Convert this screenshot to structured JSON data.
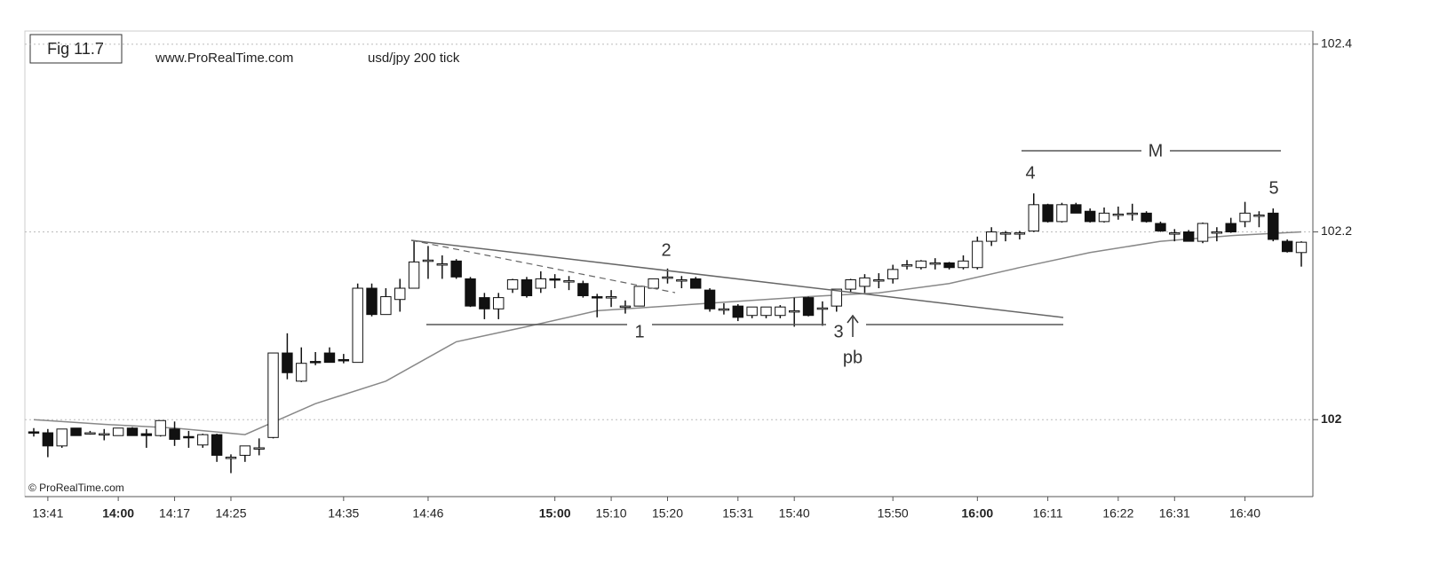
{
  "chart_data": {
    "type": "candlestick",
    "title": "Fig 11.7",
    "subtitle": "www.ProRealTime.com",
    "instrument": "usd/jpy  200 tick",
    "credit": "© ProRealTime.com",
    "annotations": [
      "1",
      "2",
      "3",
      "4",
      "5",
      "M",
      "pb"
    ],
    "x": [
      null,
      "13:41",
      null,
      null,
      null,
      null,
      "14:00",
      null,
      null,
      null,
      "14:17",
      null,
      null,
      null,
      "14:25",
      null,
      null,
      null,
      null,
      null,
      null,
      null,
      "14:35",
      null,
      null,
      null,
      null,
      null,
      "14:46",
      null,
      null,
      null,
      null,
      null,
      null,
      null,
      null,
      "15:00",
      null,
      null,
      null,
      "15:10",
      null,
      null,
      null,
      "15:20",
      null,
      null,
      null,
      null,
      "15:31",
      null,
      null,
      null,
      "15:40",
      null,
      null,
      null,
      null,
      null,
      null,
      "15:50",
      null,
      null,
      null,
      null,
      null,
      "16:00",
      null,
      null,
      null,
      null,
      "16:11",
      null,
      null,
      null,
      null,
      "16:22",
      null,
      null,
      null,
      "16:31",
      null,
      null,
      null,
      null,
      "16:40",
      null,
      null,
      null,
      null
    ],
    "open": [
      101.987,
      101.986,
      101.972,
      101.991,
      101.986,
      101.985,
      101.983,
      101.991,
      101.985,
      101.983,
      101.99,
      101.982,
      101.973,
      101.984,
      101.96,
      101.962,
      101.97,
      101.981,
      102.071,
      102.041,
      102.062,
      102.071,
      102.064,
      102.061,
      102.14,
      102.112,
      102.128,
      102.14,
      102.17,
      102.166,
      102.169,
      102.15,
      102.13,
      102.118,
      102.139,
      102.149,
      102.14,
      102.15,
      102.148,
      102.145,
      102.131,
      102.131,
      102.121,
      102.121,
      102.14,
      102.152,
      102.149,
      102.15,
      102.138,
      102.118,
      102.121,
      102.111,
      102.111,
      102.111,
      102.116,
      102.13,
      102.119,
      102.121,
      102.139,
      102.142,
      102.149,
      102.15,
      102.165,
      102.162,
      102.167,
      102.167,
      102.162,
      102.162,
      102.19,
      102.199,
      102.199,
      102.201,
      102.229,
      102.211,
      102.229,
      102.222,
      102.211,
      102.219,
      102.22,
      102.22,
      102.209,
      102.199,
      102.2,
      102.19,
      102.2,
      102.209,
      102.211,
      102.218,
      102.22,
      102.19,
      102.178
    ],
    "high": [
      101.991,
      101.99,
      101.99,
      101.991,
      101.988,
      101.99,
      101.991,
      101.992,
      101.99,
      101.999,
      101.998,
      101.988,
      101.985,
      101.985,
      101.963,
      101.972,
      101.98,
      102.071,
      102.092,
      102.077,
      102.072,
      102.077,
      102.07,
      102.145,
      102.145,
      102.14,
      102.15,
      102.19,
      102.185,
      102.175,
      102.171,
      102.152,
      102.135,
      102.135,
      102.15,
      102.152,
      102.158,
      102.155,
      102.153,
      102.148,
      102.134,
      102.138,
      102.127,
      102.142,
      102.15,
      102.161,
      102.153,
      102.152,
      102.14,
      102.124,
      102.123,
      102.12,
      102.12,
      102.122,
      102.13,
      102.131,
      102.126,
      102.139,
      102.15,
      102.155,
      102.156,
      102.165,
      102.17,
      102.17,
      102.172,
      102.168,
      102.175,
      102.195,
      102.205,
      102.201,
      102.201,
      102.241,
      102.23,
      102.231,
      102.231,
      102.225,
      102.226,
      102.227,
      102.23,
      102.222,
      102.211,
      102.203,
      102.202,
      102.21,
      102.205,
      102.215,
      102.232,
      102.222,
      102.225,
      102.192,
      102.19
    ],
    "low": [
      101.982,
      101.96,
      101.97,
      101.983,
      101.984,
      101.978,
      101.983,
      101.983,
      101.97,
      101.982,
      101.972,
      101.97,
      101.97,
      101.955,
      101.943,
      101.955,
      101.962,
      101.98,
      102.043,
      102.04,
      102.058,
      102.061,
      102.06,
      102.061,
      102.11,
      102.112,
      102.115,
      102.14,
      102.15,
      102.15,
      102.15,
      102.12,
      102.107,
      102.107,
      102.135,
      102.13,
      102.135,
      102.14,
      102.138,
      102.13,
      102.109,
      102.12,
      102.113,
      102.121,
      102.14,
      102.145,
      102.14,
      102.14,
      102.115,
      102.112,
      102.105,
      102.108,
      102.108,
      102.108,
      102.099,
      102.11,
      102.1,
      102.115,
      102.135,
      102.135,
      102.14,
      102.145,
      102.16,
      102.16,
      102.16,
      102.16,
      102.16,
      102.16,
      102.185,
      102.19,
      102.192,
      102.2,
      102.21,
      102.21,
      102.22,
      102.21,
      102.21,
      102.213,
      102.212,
      102.21,
      102.2,
      102.19,
      102.19,
      102.188,
      102.19,
      102.199,
      102.205,
      102.205,
      102.19,
      102.178,
      102.163
    ],
    "close": [
      101.986,
      101.972,
      101.99,
      101.983,
      101.986,
      101.985,
      101.991,
      101.983,
      101.983,
      101.999,
      101.979,
      101.981,
      101.984,
      101.962,
      101.96,
      101.972,
      101.97,
      102.071,
      102.05,
      102.06,
      102.061,
      102.061,
      102.063,
      102.14,
      102.112,
      102.131,
      102.14,
      102.168,
      102.17,
      102.166,
      102.152,
      102.121,
      102.118,
      102.13,
      102.149,
      102.132,
      102.15,
      102.149,
      102.148,
      102.132,
      102.13,
      102.131,
      102.121,
      102.142,
      102.15,
      102.152,
      102.149,
      102.14,
      102.118,
      102.118,
      102.109,
      102.12,
      102.12,
      102.12,
      102.116,
      102.111,
      102.119,
      102.139,
      102.149,
      102.151,
      102.149,
      102.16,
      102.165,
      102.169,
      102.167,
      102.162,
      102.169,
      102.19,
      102.2,
      102.199,
      102.199,
      102.229,
      102.211,
      102.229,
      102.22,
      102.211,
      102.22,
      102.219,
      102.22,
      102.211,
      102.201,
      102.199,
      102.19,
      102.209,
      102.2,
      102.2,
      102.22,
      102.218,
      102.192,
      102.179,
      102.189
    ],
    "moving_average": {
      "color": "#888888",
      "x": [
        0,
        5,
        10,
        15,
        20,
        25,
        30,
        35,
        40,
        45,
        50,
        55,
        60,
        65,
        70,
        75,
        80,
        85,
        90
      ],
      "values": [
        102.0,
        101.995,
        101.991,
        101.984,
        102.017,
        102.041,
        102.083,
        102.099,
        102.116,
        102.121,
        102.126,
        102.131,
        102.135,
        102.145,
        102.162,
        102.178,
        102.19,
        102.196,
        102.2
      ]
    },
    "ylim": [
      101.918,
      102.414
    ],
    "yticks": [
      102,
      102.2,
      102.4
    ],
    "grid": true
  }
}
